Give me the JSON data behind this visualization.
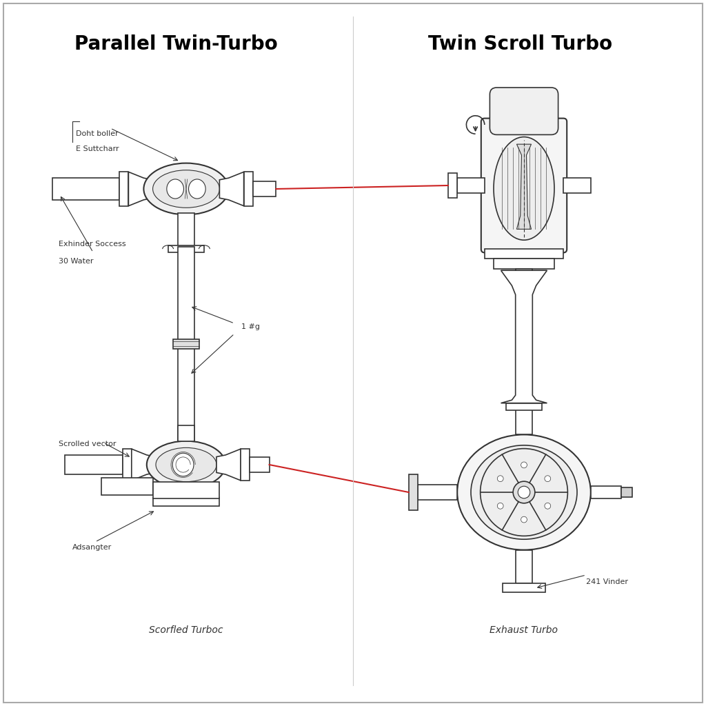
{
  "title_left": "Parallel Twin-Turbo",
  "title_right": "Twin Scroll Turbo",
  "title_fontsize": 20,
  "title_fontweight": "bold",
  "background_color": "#ffffff",
  "line_color": "#333333",
  "red_line_color": "#cc2222",
  "label_fontsize": 8,
  "caption_left": "Scorfled Turboс",
  "caption_right": "Exhaust Turbo",
  "annotation_topleft_1": "Doht boller",
  "annotation_topleft_2": "E Suttcharr",
  "annotation_midleft_1": "Exhinder Soccess",
  "annotation_midleft_2": "30 Water",
  "annotation_midright": "1 #g",
  "annotation_scrollleft": "Scrolled vector",
  "annotation_adsangter": "Adsangter",
  "annotation_241": "241 Vinder"
}
